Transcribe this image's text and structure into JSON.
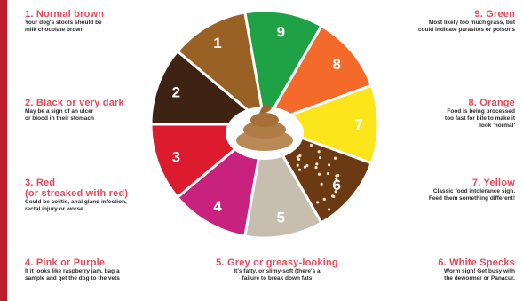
{
  "colors": {
    "accent": "#e8485b",
    "bar": "#b81e2b"
  },
  "wedges": [
    {
      "num": "9",
      "color": "#1fa246"
    },
    {
      "num": "8",
      "color": "#f36a2b"
    },
    {
      "num": "7",
      "color": "#fde51c"
    },
    {
      "num": "6",
      "color": "#6b3a12"
    },
    {
      "num": "5",
      "color": "#c7beaf"
    },
    {
      "num": "4",
      "color": "#c8217e"
    },
    {
      "num": "3",
      "color": "#dc1c2e"
    },
    {
      "num": "2",
      "color": "#3e2212"
    },
    {
      "num": "1",
      "color": "#9a6125"
    }
  ],
  "notes": [
    {
      "title": "1. Normal brown",
      "desc": "Your dog's stools should be\nmilk chocolate brown"
    },
    {
      "title": "2. Black or very dark",
      "desc": "May be a sign of an ulcer\nor blood in their stomach"
    },
    {
      "title": "3. Red\n(or streaked with red)",
      "desc": "Could be colitis, anal gland infection,\nrectal injury or worse"
    },
    {
      "title": "4. Pink or Purple",
      "desc": "If it looks like raspberry jam, bag a\nsample and get the dog to the vets"
    },
    {
      "title": "5. Grey or greasy-looking",
      "desc": "It's fatty, or slimy-soft (there's a\nfailure to break down fats"
    },
    {
      "title": "6. White Specks",
      "desc": "Worm sign! Get busy with\nthe dewormer or Panacur."
    },
    {
      "title": "7. Yellow",
      "desc": "Classic food intolerance sign.\nFeed them something different!"
    },
    {
      "title": "8. Orange",
      "desc": "Food is being processed\ntoo fast for bile to make it\nlook 'normal'"
    },
    {
      "title": "9. Green",
      "desc": "Most likely too much grass, but\ncould indicate parasites or poisons"
    }
  ]
}
